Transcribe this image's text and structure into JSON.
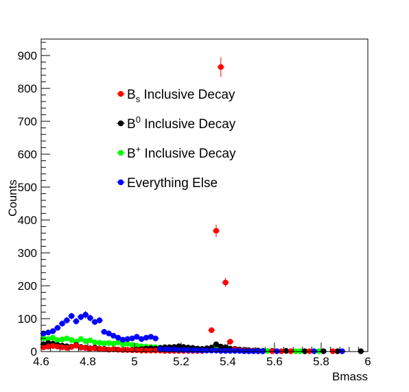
{
  "chart_data": {
    "type": "scatter",
    "xlabel": "Bmass",
    "ylabel": "Counts",
    "xlim": [
      4.6,
      6.0
    ],
    "ylim": [
      0,
      950
    ],
    "x_ticks": [
      "4.6",
      "4.8",
      "5",
      "5.2",
      "5.4",
      "5.6",
      "5.8",
      "6"
    ],
    "x_tick_values": [
      4.6,
      4.8,
      5.0,
      5.2,
      5.4,
      5.6,
      5.8,
      6.0
    ],
    "y_ticks": [
      "0",
      "100",
      "200",
      "300",
      "400",
      "500",
      "600",
      "700",
      "800",
      "900"
    ],
    "y_tick_values": [
      0,
      100,
      200,
      300,
      400,
      500,
      600,
      700,
      800,
      900
    ],
    "legend_placement": "upper-center",
    "series": [
      {
        "legend_base": "B",
        "legend_sub": "s",
        "legend_sup": "",
        "legend_rest": " Inclusive Decay",
        "color": "#ff0000",
        "x": [
          4.61,
          4.63,
          4.65,
          4.67,
          4.69,
          4.71,
          4.73,
          4.75,
          4.77,
          4.79,
          4.81,
          4.83,
          4.85,
          4.87,
          4.89,
          4.91,
          4.93,
          4.95,
          4.97,
          4.99,
          5.01,
          5.03,
          5.05,
          5.07,
          5.09,
          5.11,
          5.13,
          5.15,
          5.17,
          5.19,
          5.21,
          5.23,
          5.25,
          5.27,
          5.29,
          5.31,
          5.33,
          5.35,
          5.37,
          5.39,
          5.41,
          5.43,
          5.45,
          5.47,
          5.49,
          5.51,
          5.55,
          5.59,
          5.63,
          5.67,
          5.75,
          5.85
        ],
        "y": [
          13,
          15,
          17,
          15,
          13,
          11,
          14,
          18,
          12,
          11,
          9,
          10,
          8,
          7,
          6,
          7,
          6,
          5,
          5,
          4,
          4,
          3,
          3,
          3,
          3,
          3,
          2,
          2,
          2,
          2,
          2,
          2,
          2,
          2,
          2,
          3,
          65,
          367,
          865,
          210,
          30,
          6,
          4,
          3,
          2,
          2,
          1,
          1,
          1,
          1,
          1,
          1
        ],
        "err": [
          3,
          3,
          3,
          3,
          3,
          3,
          3,
          3,
          3,
          3,
          3,
          3,
          3,
          3,
          2,
          2,
          2,
          2,
          2,
          2,
          2,
          2,
          2,
          2,
          2,
          2,
          1,
          1,
          1,
          1,
          1,
          1,
          1,
          1,
          1,
          2,
          8,
          19,
          30,
          14,
          6,
          2,
          2,
          2,
          1,
          1,
          1,
          1,
          1,
          1,
          1,
          1
        ]
      },
      {
        "legend_base": "B",
        "legend_sub": "",
        "legend_sup": "0",
        "legend_rest": " Inclusive Decay",
        "color": "#000000",
        "x": [
          4.61,
          4.63,
          4.65,
          4.67,
          4.69,
          4.71,
          4.73,
          4.75,
          4.77,
          4.79,
          4.81,
          4.83,
          4.85,
          4.87,
          4.89,
          4.91,
          4.93,
          4.95,
          4.97,
          4.99,
          5.01,
          5.03,
          5.05,
          5.07,
          5.09,
          5.11,
          5.13,
          5.15,
          5.17,
          5.19,
          5.21,
          5.23,
          5.25,
          5.27,
          5.29,
          5.31,
          5.33,
          5.35,
          5.37,
          5.39,
          5.41,
          5.43,
          5.45,
          5.47,
          5.49,
          5.51,
          5.53,
          5.55,
          5.59,
          5.65,
          5.73,
          5.81,
          5.87,
          5.97
        ],
        "y": [
          22,
          26,
          24,
          20,
          18,
          16,
          15,
          20,
          14,
          12,
          10,
          12,
          9,
          8,
          6,
          7,
          6,
          5,
          5,
          5,
          6,
          8,
          9,
          10,
          9,
          11,
          13,
          13,
          14,
          16,
          14,
          12,
          11,
          9,
          8,
          10,
          12,
          22,
          15,
          13,
          9,
          8,
          6,
          5,
          4,
          3,
          3,
          2,
          2,
          2,
          1,
          1,
          1,
          1
        ],
        "err": [
          4,
          4,
          4,
          4,
          4,
          4,
          4,
          4,
          4,
          3,
          3,
          3,
          3,
          3,
          2,
          2,
          2,
          2,
          2,
          2,
          2,
          3,
          3,
          3,
          3,
          3,
          3,
          3,
          3,
          4,
          4,
          3,
          3,
          3,
          3,
          3,
          3,
          4,
          4,
          3,
          3,
          3,
          2,
          2,
          2,
          2,
          2,
          1,
          1,
          1,
          1,
          1,
          1,
          1
        ]
      },
      {
        "legend_base": "B",
        "legend_sub": "",
        "legend_sup": "+",
        "legend_rest": " Inclusive Decay",
        "color": "#00ff00",
        "x": [
          4.61,
          4.63,
          4.65,
          4.67,
          4.69,
          4.71,
          4.73,
          4.75,
          4.77,
          4.79,
          4.81,
          4.83,
          4.85,
          4.87,
          4.89,
          4.91,
          4.93,
          4.95,
          4.97,
          4.99,
          5.01,
          5.03,
          5.05,
          5.07,
          5.09,
          5.11,
          5.13,
          5.15,
          5.17,
          5.19,
          5.21,
          5.23,
          5.25,
          5.27,
          5.29,
          5.31,
          5.33,
          5.35,
          5.37,
          5.39,
          5.41,
          5.43,
          5.45,
          5.47,
          5.49,
          5.51,
          5.53,
          5.55,
          5.57,
          5.69,
          5.71,
          5.73,
          5.79
        ],
        "y": [
          40,
          38,
          42,
          35,
          37,
          40,
          35,
          30,
          38,
          32,
          34,
          28,
          27,
          25,
          26,
          24,
          28,
          22,
          24,
          20,
          18,
          16,
          15,
          14,
          13,
          12,
          12,
          11,
          11,
          10,
          10,
          9,
          9,
          8,
          8,
          8,
          7,
          7,
          6,
          6,
          5,
          5,
          4,
          4,
          3,
          3,
          2,
          2,
          2,
          1,
          1,
          1,
          1
        ],
        "err": [
          6,
          6,
          6,
          6,
          6,
          6,
          6,
          5,
          6,
          5,
          5,
          5,
          5,
          5,
          5,
          5,
          5,
          4,
          4,
          4,
          4,
          4,
          4,
          4,
          3,
          3,
          3,
          3,
          3,
          3,
          3,
          3,
          3,
          3,
          3,
          3,
          3,
          3,
          2,
          2,
          2,
          2,
          2,
          2,
          2,
          2,
          1,
          1,
          1,
          1,
          1,
          1,
          1
        ]
      },
      {
        "legend_base": "Everything Else",
        "legend_sub": "",
        "legend_sup": "",
        "legend_rest": "",
        "color": "#0000ff",
        "x": [
          4.61,
          4.63,
          4.65,
          4.67,
          4.69,
          4.71,
          4.73,
          4.75,
          4.77,
          4.79,
          4.81,
          4.83,
          4.85,
          4.87,
          4.89,
          4.91,
          4.93,
          4.95,
          4.97,
          4.99,
          5.01,
          5.03,
          5.05,
          5.07,
          5.09,
          5.11,
          5.13,
          5.15,
          5.17,
          5.19,
          5.21,
          5.23,
          5.25,
          5.27,
          5.29,
          5.31,
          5.33,
          5.35,
          5.37,
          5.39,
          5.41,
          5.43,
          5.45,
          5.47,
          5.49,
          5.51,
          5.53,
          5.55,
          5.61,
          5.77,
          5.89
        ],
        "y": [
          55,
          58,
          62,
          72,
          85,
          95,
          108,
          92,
          105,
          112,
          102,
          90,
          95,
          60,
          55,
          48,
          42,
          36,
          38,
          40,
          45,
          38,
          42,
          45,
          40,
          8,
          7,
          6,
          6,
          5,
          5,
          4,
          4,
          4,
          3,
          3,
          3,
          3,
          2,
          2,
          2,
          2,
          2,
          1,
          1,
          1,
          1,
          1,
          1,
          1,
          1
        ],
        "err": [
          7,
          8,
          8,
          8,
          9,
          10,
          10,
          10,
          10,
          11,
          10,
          9,
          10,
          8,
          7,
          7,
          6,
          6,
          6,
          6,
          7,
          6,
          6,
          7,
          6,
          3,
          3,
          2,
          2,
          2,
          2,
          2,
          2,
          2,
          2,
          2,
          2,
          2,
          1,
          1,
          1,
          1,
          1,
          1,
          1,
          1,
          1,
          1,
          1,
          1,
          1
        ]
      }
    ]
  }
}
